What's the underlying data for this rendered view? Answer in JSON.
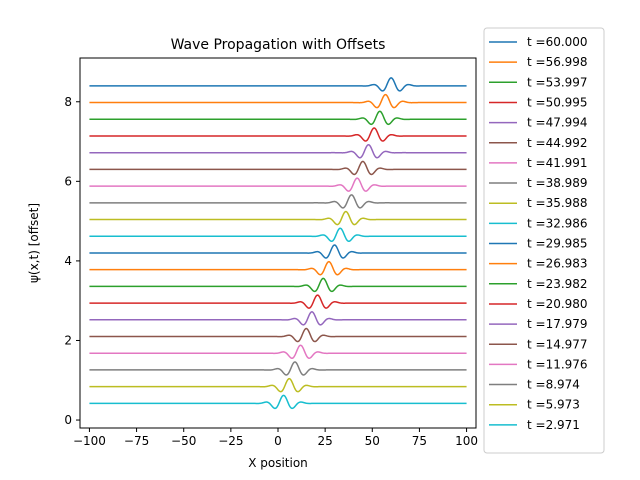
{
  "chart_data": {
    "type": "line",
    "title": "Wave Propagation with Offsets",
    "xlabel": "X position",
    "ylabel": "ψ(x,t) [offset]",
    "xlim": [
      -105,
      105
    ],
    "ylim": [
      -0.2,
      9.1
    ],
    "xticks": [
      -100,
      -75,
      -50,
      -25,
      0,
      25,
      50,
      75,
      100
    ],
    "yticks": [
      0,
      2,
      4,
      6,
      8
    ],
    "grid": false,
    "legend_position": "outside-right",
    "wave": {
      "speed": 1.0,
      "width": 10,
      "wavelength": 10,
      "amplitude": 0.2
    },
    "series": [
      {
        "name": "t =60.000",
        "t": 60.0,
        "offset": 8.4,
        "color": "#1f77b4"
      },
      {
        "name": "t =56.998",
        "t": 56.998,
        "offset": 7.98,
        "color": "#ff7f0e"
      },
      {
        "name": "t =53.997",
        "t": 53.997,
        "offset": 7.56,
        "color": "#2ca02c"
      },
      {
        "name": "t =50.995",
        "t": 50.995,
        "offset": 7.14,
        "color": "#d62728"
      },
      {
        "name": "t =47.994",
        "t": 47.994,
        "offset": 6.72,
        "color": "#9467bd"
      },
      {
        "name": "t =44.992",
        "t": 44.992,
        "offset": 6.3,
        "color": "#8c564b"
      },
      {
        "name": "t =41.991",
        "t": 41.991,
        "offset": 5.88,
        "color": "#e377c2"
      },
      {
        "name": "t =38.989",
        "t": 38.989,
        "offset": 5.46,
        "color": "#7f7f7f"
      },
      {
        "name": "t =35.988",
        "t": 35.988,
        "offset": 5.04,
        "color": "#bcbd22"
      },
      {
        "name": "t =32.986",
        "t": 32.986,
        "offset": 4.62,
        "color": "#17becf"
      },
      {
        "name": "t =29.985",
        "t": 29.985,
        "offset": 4.2,
        "color": "#1f77b4"
      },
      {
        "name": "t =26.983",
        "t": 26.983,
        "offset": 3.78,
        "color": "#ff7f0e"
      },
      {
        "name": "t =23.982",
        "t": 23.982,
        "offset": 3.36,
        "color": "#2ca02c"
      },
      {
        "name": "t =20.980",
        "t": 20.98,
        "offset": 2.94,
        "color": "#d62728"
      },
      {
        "name": "t =17.979",
        "t": 17.979,
        "offset": 2.52,
        "color": "#9467bd"
      },
      {
        "name": "t =14.977",
        "t": 14.977,
        "offset": 2.1,
        "color": "#8c564b"
      },
      {
        "name": "t =11.976",
        "t": 11.976,
        "offset": 1.68,
        "color": "#e377c2"
      },
      {
        "name": "t =8.974",
        "t": 8.974,
        "offset": 1.26,
        "color": "#7f7f7f"
      },
      {
        "name": "t =5.973",
        "t": 5.973,
        "offset": 0.84,
        "color": "#bcbd22"
      },
      {
        "name": "t =2.971",
        "t": 2.971,
        "offset": 0.42,
        "color": "#17becf"
      }
    ]
  }
}
